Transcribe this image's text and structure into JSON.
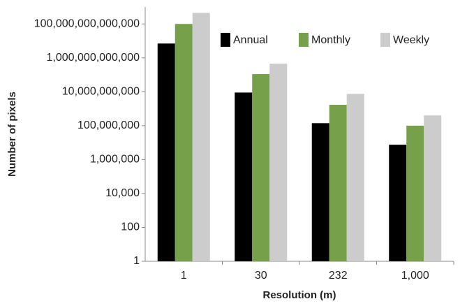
{
  "chart_data": {
    "type": "bar",
    "log_scale": true,
    "xlabel": "Resolution (m)",
    "ylabel": "Number of pixels",
    "categories": [
      "1",
      "30",
      "232",
      "1,000"
    ],
    "series": [
      {
        "name": "Annual",
        "color": "#000000",
        "values": [
          7000000000000.0,
          9000000000.0,
          140000000.0,
          7500000.0
        ]
      },
      {
        "name": "Monthly",
        "color": "#77a04a",
        "values": [
          100000000000000.0,
          110000000000.0,
          1700000000.0,
          100000000.0
        ]
      },
      {
        "name": "Weekly",
        "color": "#cccccc",
        "values": [
          450000000000000.0,
          450000000000.0,
          7500000000.0,
          400000000.0
        ]
      }
    ],
    "ylim": [
      1,
      1000000000000000.0
    ],
    "yticks": [
      1,
      100,
      {
        "value": 10000,
        "label": "10,000"
      },
      {
        "value": 1000000,
        "label": "1,000,000"
      },
      {
        "value": 100000000,
        "label": "100,000,000"
      },
      {
        "value": 10000000000,
        "label": "10,000,000,000"
      },
      {
        "value": 1000000000000,
        "label": "1,000,000,000,000"
      },
      {
        "value": 100000000000000,
        "label": "100,000,000,000,000"
      }
    ],
    "legend": "top-right"
  }
}
